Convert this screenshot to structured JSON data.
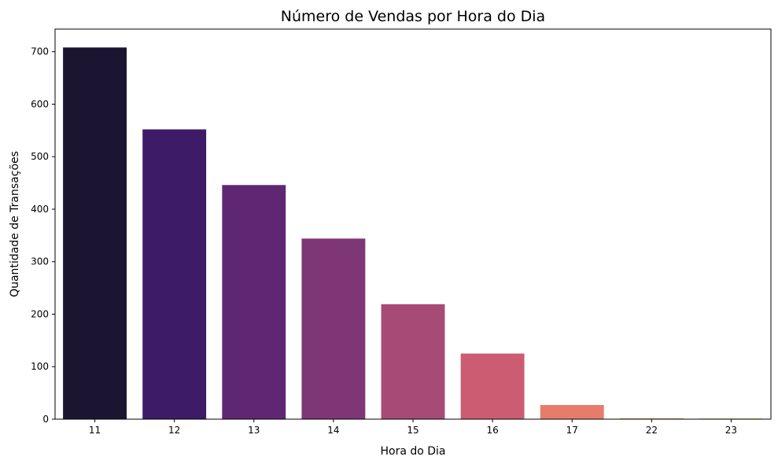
{
  "chart_data": {
    "type": "bar",
    "title": "Número de Vendas por Hora do Dia",
    "xlabel": "Hora do Dia",
    "ylabel": "Quantidade de Transações",
    "categories": [
      "11",
      "12",
      "13",
      "14",
      "15",
      "16",
      "17",
      "22",
      "23"
    ],
    "values": [
      708,
      552,
      446,
      344,
      219,
      125,
      27,
      2,
      1
    ],
    "ylim": [
      0,
      743
    ],
    "yticks": [
      0,
      100,
      200,
      300,
      400,
      500,
      600,
      700
    ],
    "colors": [
      "#1b1532",
      "#3d1b66",
      "#5f2773",
      "#7f3677",
      "#a84a76",
      "#cc5c72",
      "#e67d6a",
      "#f3ae7a",
      "#f5bd88"
    ],
    "grid": false,
    "legend": "none"
  }
}
